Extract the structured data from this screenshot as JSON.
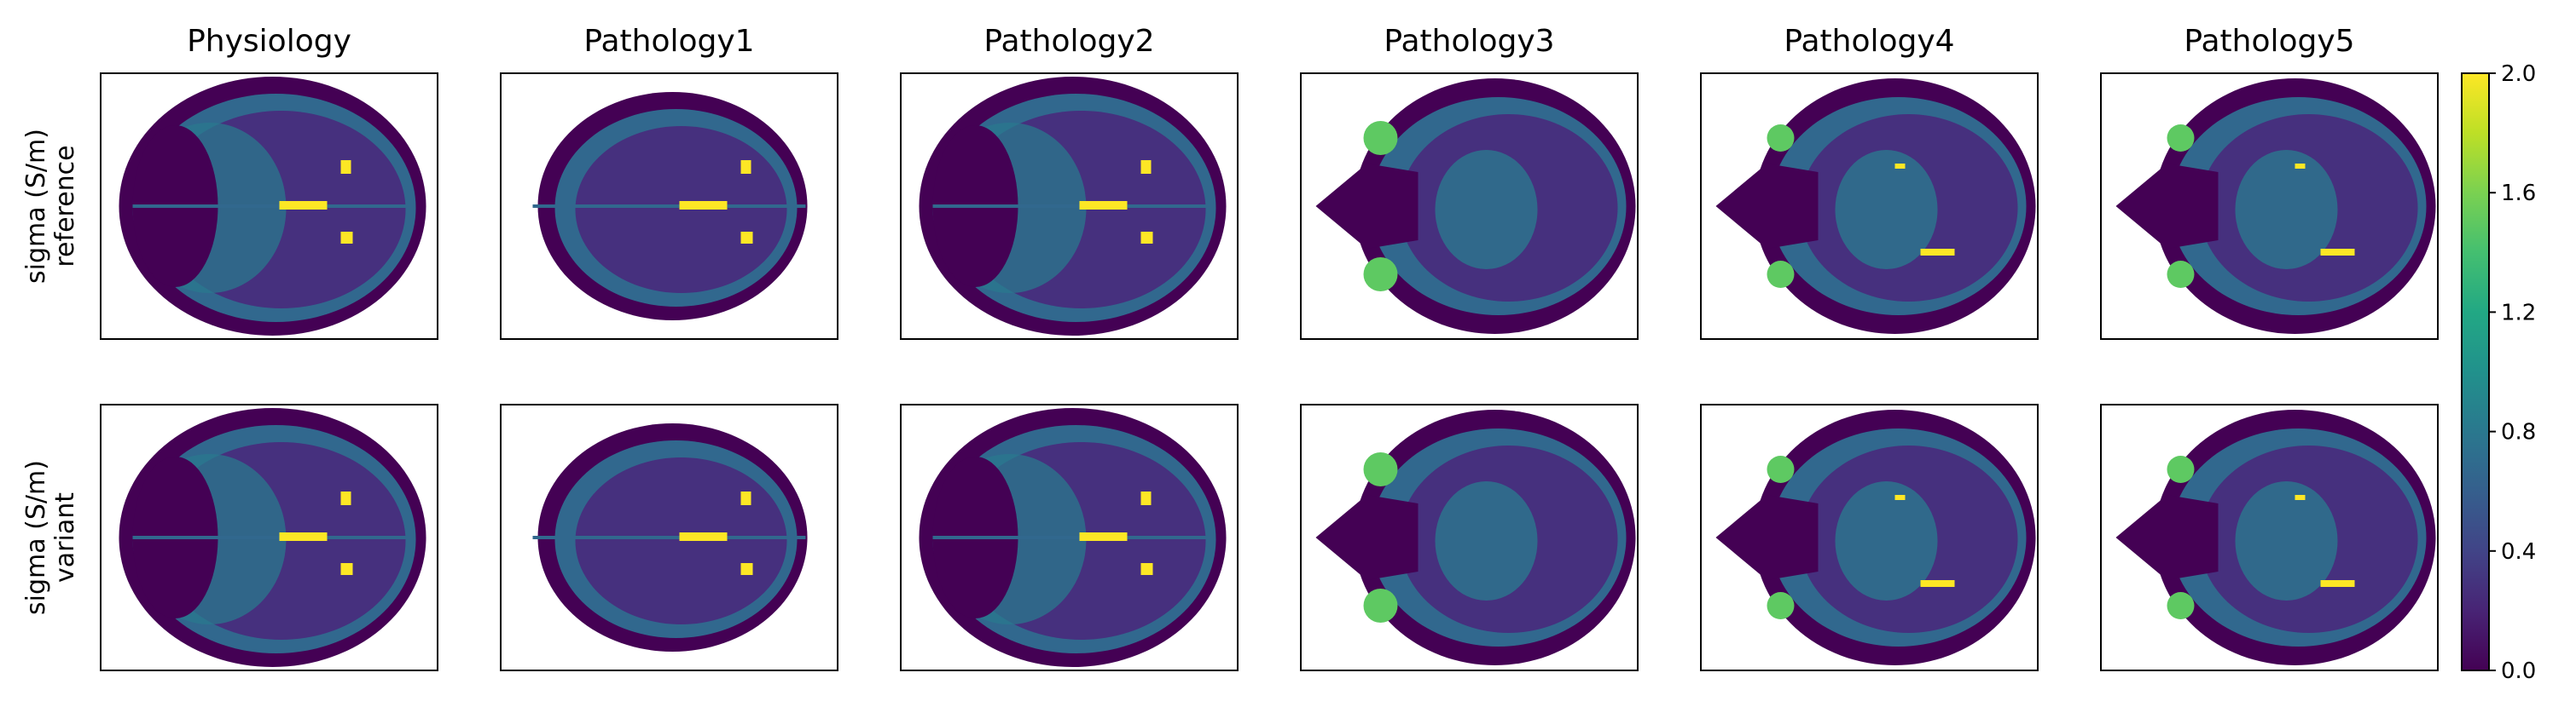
{
  "chart_data": {
    "type": "heatmap",
    "description_of_grid": "2 rows x 6 columns of axial head-slice conductivity maps",
    "columns": [
      "Physiology",
      "Pathology1",
      "Pathology2",
      "Pathology3",
      "Pathology4",
      "Pathology5"
    ],
    "rows": [
      {
        "label_line1": "sigma (S/m)",
        "label_line2": "reference"
      },
      {
        "label_line1": "sigma (S/m)",
        "label_line2": "variant"
      }
    ],
    "colorbar": {
      "colormap": "viridis",
      "range": [
        0.0,
        2.0
      ],
      "ticks": [
        "0.0",
        "0.4",
        "0.8",
        "1.2",
        "1.6",
        "2.0"
      ]
    },
    "panel_types": [
      "axial-low",
      "axial-low-small",
      "axial-low",
      "axial-orbit",
      "axial-orbit-small",
      "axial-orbit-small",
      "axial-low",
      "axial-low-small",
      "axial-low",
      "axial-orbit",
      "axial-orbit-small",
      "axial-orbit-small"
    ]
  },
  "colors": {
    "viridis_0": "#440154",
    "viridis_low": "#46307e",
    "viridis_mid": "#31688e",
    "viridis_teal": "#2a788e",
    "viridis_green": "#35b779",
    "viridis_bright": "#5ec962",
    "viridis_max": "#fde725"
  }
}
